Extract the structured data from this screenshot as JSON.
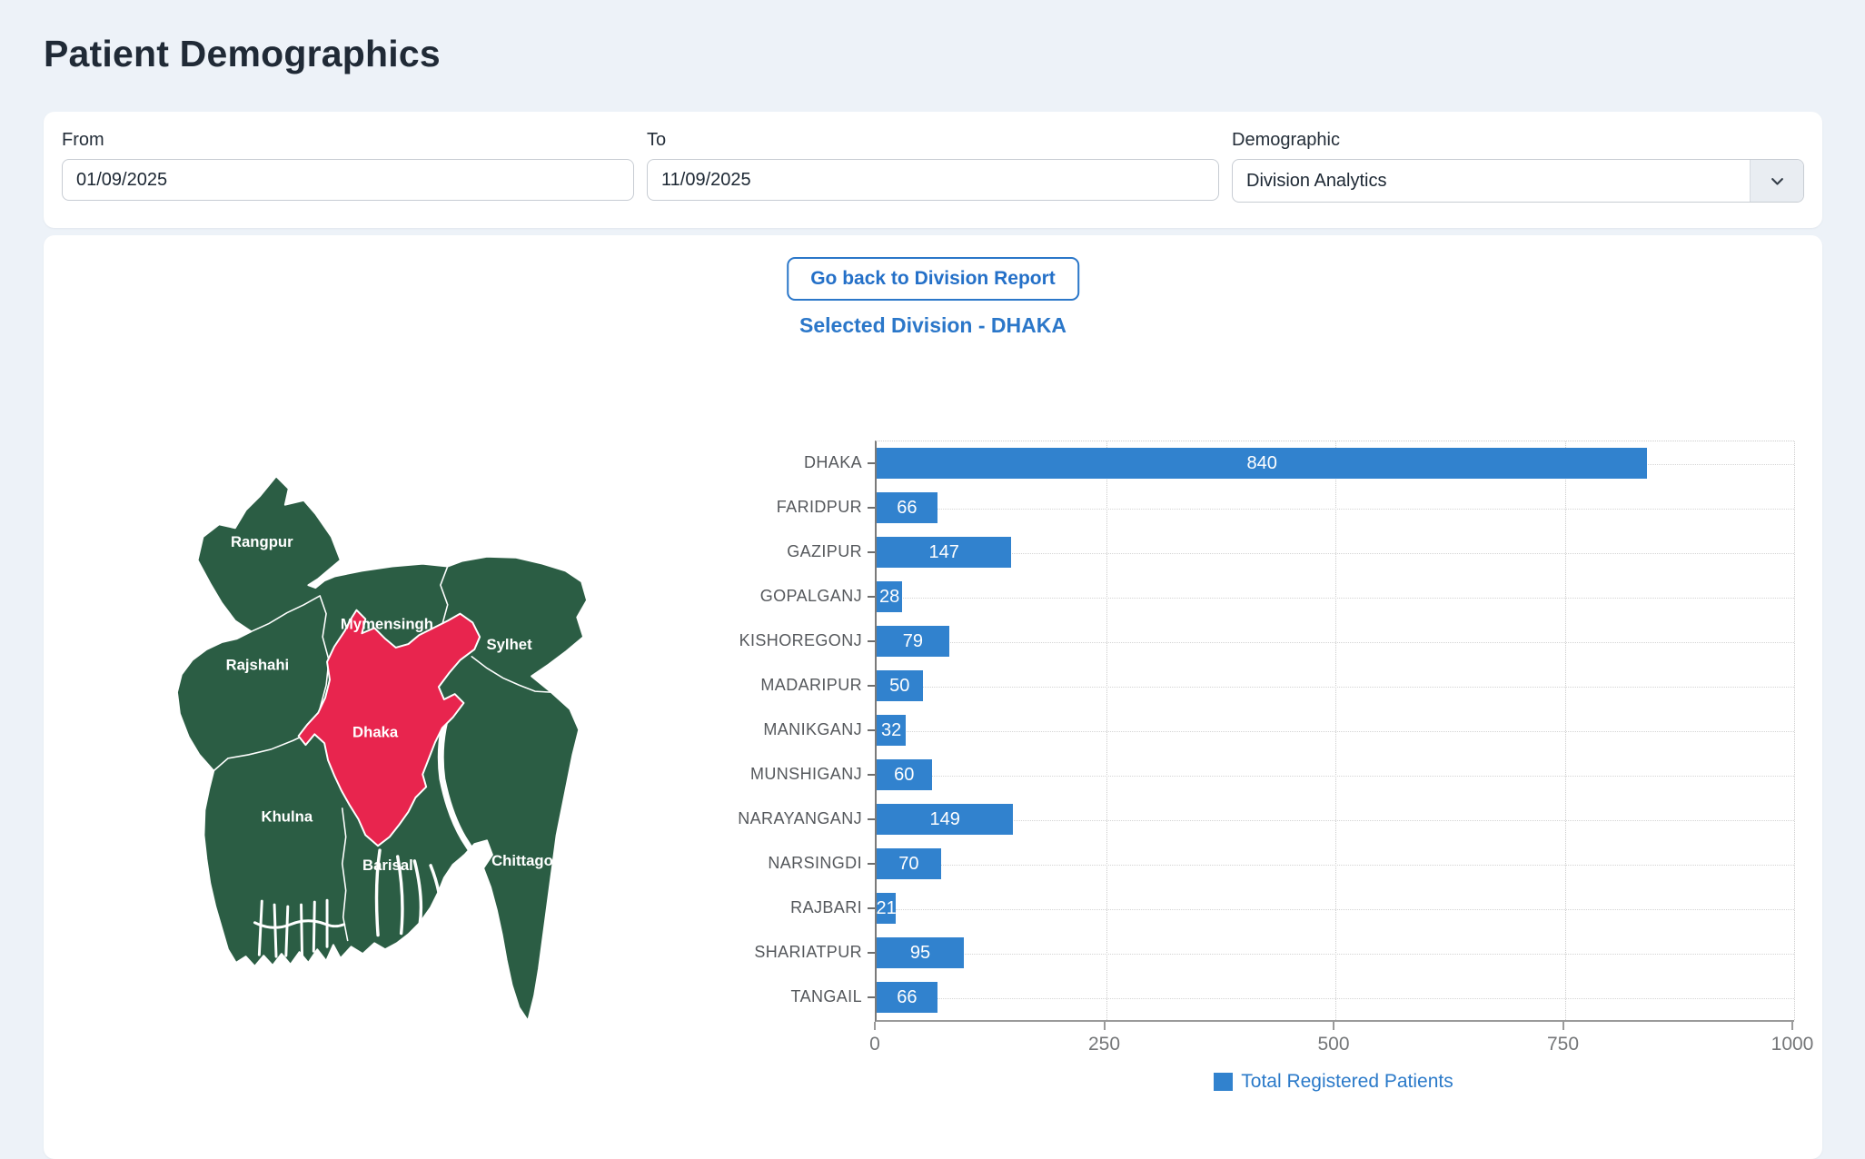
{
  "page": {
    "title": "Patient Demographics",
    "background": "#edf2f8"
  },
  "filters": {
    "from": {
      "label": "From",
      "value": "01/09/2025"
    },
    "to": {
      "label": "To",
      "value": "11/09/2025"
    },
    "demographic": {
      "label": "Demographic",
      "value": "Division Analytics"
    }
  },
  "report": {
    "back_button_label": "Go back to Division Report",
    "selected_division_label": "Selected Division - DHAKA"
  },
  "map": {
    "selected_division": "Dhaka",
    "region_color": "#2b5d44",
    "selected_color": "#e8254e",
    "border_color": "#ffffff",
    "labels": [
      "Rangpur",
      "Rajshahi",
      "Mymensingh",
      "Sylhet",
      "Dhaka",
      "Khulna",
      "Barisal",
      "Chittagong"
    ]
  },
  "chart_data": {
    "type": "bar",
    "orientation": "horizontal",
    "categories": [
      "DHAKA",
      "FARIDPUR",
      "GAZIPUR",
      "GOPALGANJ",
      "KISHOREGONJ",
      "MADARIPUR",
      "MANIKGANJ",
      "MUNSHIGANJ",
      "NARAYANGANJ",
      "NARSINGDI",
      "RAJBARI",
      "SHARIATPUR",
      "TANGAIL"
    ],
    "values": [
      840,
      66,
      147,
      28,
      79,
      50,
      32,
      60,
      149,
      70,
      21,
      95,
      66
    ],
    "xlim": [
      0,
      1000
    ],
    "x_ticks": [
      0,
      250,
      500,
      750,
      1000
    ],
    "grid": "dotted",
    "bar_color": "#3182ce",
    "value_label_color": "#ffffff",
    "legend": {
      "label": "Total Registered Patients",
      "color": "#3182ce",
      "text_color": "#2b7ac9",
      "position": "bottom"
    }
  }
}
